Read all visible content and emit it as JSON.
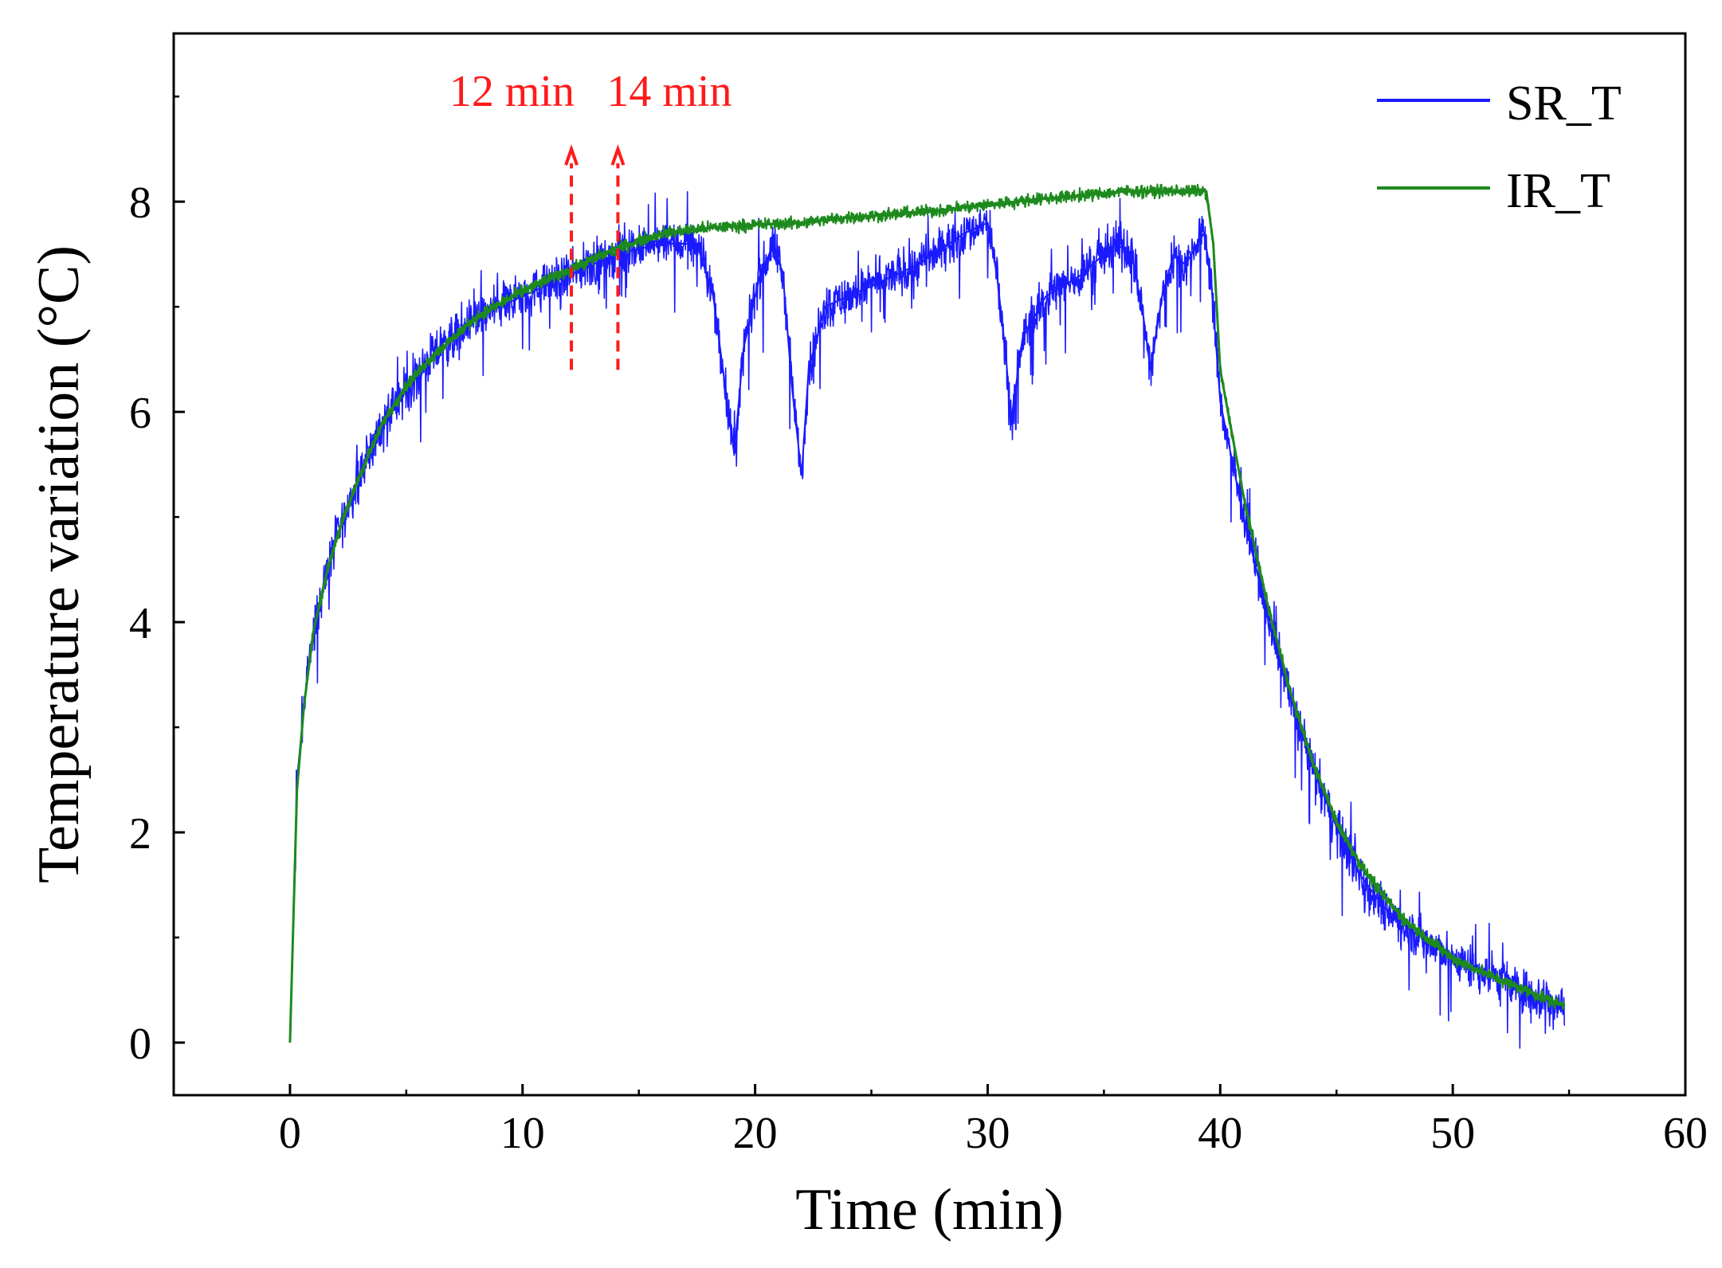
{
  "chart_data": {
    "type": "line",
    "title": "",
    "xlabel": "Time (min)",
    "ylabel": "Temperature variation (°C)",
    "xlim": [
      -5,
      60
    ],
    "ylim": [
      -0.5,
      9.6
    ],
    "xticks": [
      0,
      10,
      20,
      30,
      40,
      50,
      60
    ],
    "yticks": [
      0,
      2,
      4,
      6,
      8
    ],
    "legend_position": "top-right",
    "series": [
      {
        "name": "SR_T",
        "color": "#1a1aff",
        "noise": 0.3,
        "x": [
          0,
          0.3,
          0.6,
          1,
          1.5,
          2,
          3,
          4,
          5,
          6,
          8,
          10,
          12,
          14,
          16,
          17.5,
          18.2,
          18.8,
          19.1,
          19.5,
          20.2,
          20.8,
          21.2,
          21.6,
          22,
          22.3,
          23,
          25,
          27,
          29,
          30,
          30.4,
          30.8,
          31,
          31.5,
          32.5,
          34,
          35.5,
          36.2,
          36.7,
          37,
          37.5,
          38,
          38.5,
          39.3,
          39.6,
          40,
          41,
          42,
          43,
          44,
          45,
          46,
          47,
          48,
          50,
          52,
          54,
          54.8
        ],
        "y": [
          0,
          2.5,
          3.2,
          3.9,
          4.4,
          4.8,
          5.4,
          5.9,
          6.2,
          6.5,
          6.9,
          7.1,
          7.3,
          7.5,
          7.6,
          7.6,
          7.1,
          6.1,
          5.6,
          6.6,
          7.3,
          7.6,
          7.3,
          6.2,
          5.4,
          6.4,
          7.0,
          7.2,
          7.4,
          7.7,
          7.8,
          7.3,
          6.5,
          5.9,
          6.7,
          7.1,
          7.3,
          7.6,
          7.5,
          6.9,
          6.4,
          7.1,
          7.5,
          7.4,
          7.7,
          7.3,
          6.1,
          5.0,
          4.1,
          3.3,
          2.6,
          2.05,
          1.6,
          1.3,
          1.1,
          0.8,
          0.6,
          0.4,
          0.35
        ]
      },
      {
        "name": "IR_T",
        "color": "#1e8a1e",
        "noise": 0.08,
        "x": [
          0,
          0.3,
          0.6,
          1,
          1.5,
          2,
          3,
          4,
          5,
          6,
          8,
          10,
          12,
          14,
          16,
          18,
          20,
          22,
          24,
          26,
          28,
          30,
          32,
          34,
          36,
          38,
          39.4,
          39.7,
          40,
          41,
          42,
          43,
          44,
          45,
          46,
          47,
          48,
          50,
          52,
          54,
          54.8
        ],
        "y": [
          0,
          2.4,
          3.2,
          3.9,
          4.4,
          4.8,
          5.4,
          5.9,
          6.25,
          6.5,
          6.9,
          7.15,
          7.35,
          7.55,
          7.7,
          7.75,
          7.78,
          7.8,
          7.85,
          7.88,
          7.92,
          7.97,
          8.02,
          8.06,
          8.1,
          8.1,
          8.1,
          7.6,
          6.4,
          5.2,
          4.2,
          3.35,
          2.65,
          2.1,
          1.7,
          1.4,
          1.15,
          0.8,
          0.6,
          0.42,
          0.35
        ]
      }
    ],
    "annotations": [
      {
        "label": "12 min",
        "x": 12.1,
        "y_from": 6.4,
        "y_to": 8.5,
        "color": "#ff1a1a"
      },
      {
        "label": "14 min",
        "x": 14.1,
        "y_from": 6.4,
        "y_to": 8.5,
        "color": "#ff1a1a"
      }
    ]
  }
}
